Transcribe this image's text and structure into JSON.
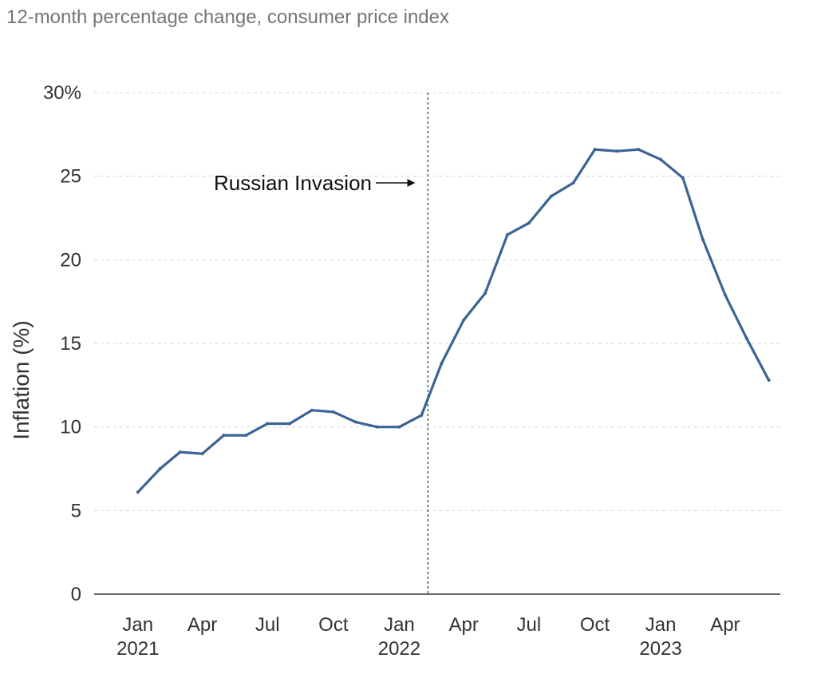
{
  "chart_data": {
    "type": "line",
    "title": "",
    "subtitle": "12-month percentage change, consumer price index",
    "xlabel": "",
    "ylabel": "Inflation (%)",
    "ylim": [
      0,
      30
    ],
    "xlim": [
      "2020-11-15",
      "2023-07-01"
    ],
    "yticks": [
      {
        "value": 0,
        "label": "0"
      },
      {
        "value": 5,
        "label": "5"
      },
      {
        "value": 10,
        "label": "10"
      },
      {
        "value": 15,
        "label": "15"
      },
      {
        "value": 20,
        "label": "20"
      },
      {
        "value": 25,
        "label": "25"
      },
      {
        "value": 30,
        "label": "30%"
      }
    ],
    "xticks": [
      {
        "date": "2021-01",
        "month": "Jan",
        "year": "2021"
      },
      {
        "date": "2021-04",
        "month": "Apr",
        "year": ""
      },
      {
        "date": "2021-07",
        "month": "Jul",
        "year": ""
      },
      {
        "date": "2021-10",
        "month": "Oct",
        "year": ""
      },
      {
        "date": "2022-01",
        "month": "Jan",
        "year": "2022"
      },
      {
        "date": "2022-04",
        "month": "Apr",
        "year": ""
      },
      {
        "date": "2022-07",
        "month": "Jul",
        "year": ""
      },
      {
        "date": "2022-10",
        "month": "Oct",
        "year": ""
      },
      {
        "date": "2023-01",
        "month": "Jan",
        "year": "2023"
      },
      {
        "date": "2023-04",
        "month": "Apr",
        "year": ""
      }
    ],
    "grid": {
      "y": true,
      "x": false
    },
    "series": [
      {
        "name": "",
        "color": "#3b6494",
        "points": [
          {
            "date": "2021-01",
            "value": 6.1
          },
          {
            "date": "2021-02",
            "value": 7.5
          },
          {
            "date": "2021-03",
            "value": 8.5
          },
          {
            "date": "2021-04",
            "value": 8.4
          },
          {
            "date": "2021-05",
            "value": 9.5
          },
          {
            "date": "2021-06",
            "value": 9.5
          },
          {
            "date": "2021-07",
            "value": 10.2
          },
          {
            "date": "2021-08",
            "value": 10.2
          },
          {
            "date": "2021-09",
            "value": 11.0
          },
          {
            "date": "2021-10",
            "value": 10.9
          },
          {
            "date": "2021-11",
            "value": 10.3
          },
          {
            "date": "2021-12",
            "value": 10.0
          },
          {
            "date": "2022-01",
            "value": 10.0
          },
          {
            "date": "2022-02",
            "value": 10.7
          },
          {
            "date": "2022-03",
            "value": 13.8
          },
          {
            "date": "2022-04",
            "value": 16.4
          },
          {
            "date": "2022-05",
            "value": 18.0
          },
          {
            "date": "2022-06",
            "value": 21.5
          },
          {
            "date": "2022-07",
            "value": 22.2
          },
          {
            "date": "2022-08",
            "value": 23.8
          },
          {
            "date": "2022-09",
            "value": 24.6
          },
          {
            "date": "2022-10",
            "value": 26.6
          },
          {
            "date": "2022-11",
            "value": 26.5
          },
          {
            "date": "2022-12",
            "value": 26.6
          },
          {
            "date": "2023-01",
            "value": 26.0
          },
          {
            "date": "2023-02",
            "value": 24.9
          },
          {
            "date": "2023-03",
            "value": 21.2
          },
          {
            "date": "2023-04",
            "value": 17.9
          },
          {
            "date": "2023-05",
            "value": 15.3
          },
          {
            "date": "2023-06",
            "value": 12.8
          }
        ]
      }
    ],
    "annotations": [
      {
        "type": "vline",
        "date": "2022-02-24",
        "text": "Russian Invasion",
        "arrow": "right",
        "y": 24.6
      }
    ]
  }
}
